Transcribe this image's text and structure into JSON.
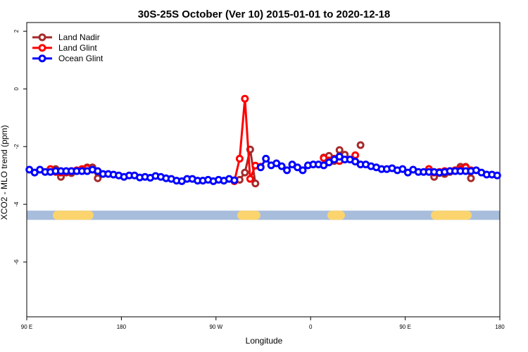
{
  "chart_data": {
    "type": "line",
    "title": "30S-25S October (Ver 10)   2015-01-01 to 2020-12-18",
    "x_label": "Longitude",
    "y_label": "XCO2 - MLO trend (ppm)",
    "xlim": [
      90,
      540
    ],
    "ylim": [
      -7.9,
      2.3
    ],
    "xticks": [
      {
        "value": 90,
        "label": "90 E"
      },
      180,
      {
        "value": 270,
        "label": "90 W"
      },
      {
        "value": 360,
        "label": "0"
      },
      {
        "value": 450,
        "label": "90 E"
      },
      {
        "value": 540,
        "label": "180"
      }
    ],
    "yticks": [
      -6,
      -4,
      -2,
      0,
      2
    ],
    "legend": "topleft",
    "surface_band": {
      "ylim": [
        -4.54,
        -4.22
      ],
      "ocean_color": "#a7bddb",
      "land_color": "#fbd46e",
      "land": [
        [
          114.8,
          153.6
        ],
        [
          290.2,
          312.3
        ],
        [
          375.9,
          392.7
        ],
        [
          474.4,
          513.2
        ]
      ]
    },
    "series": [
      {
        "name": "Land Nadir",
        "color": "#a52a2a",
        "x": [
          117.5,
          122.5,
          127.5,
          132.5,
          137.5,
          142.5,
          147.5,
          152.5,
          157.5,
          null,
          292.5,
          297.5,
          302.5,
          307.5,
          null,
          372.5,
          377.5,
          382.5,
          387.5,
          392.5,
          null,
          407.5,
          null,
          472.5,
          477.5,
          482.5,
          487.5,
          492.5,
          497.5,
          502.5,
          507.5,
          512.5
        ],
        "values": [
          -2.78,
          -3.05,
          -2.9,
          -2.92,
          -2.85,
          -2.82,
          -2.72,
          -2.72,
          -3.1,
          null,
          -3.15,
          -2.9,
          -2.1,
          -3.28,
          null,
          -2.38,
          -2.32,
          -2.5,
          -2.12,
          -2.28,
          null,
          -1.95,
          null,
          -2.78,
          -3.05,
          -2.92,
          -2.95,
          -2.88,
          -2.82,
          -2.7,
          -2.7,
          -3.1
        ]
      },
      {
        "name": "Land Glint",
        "color": "#ff0000",
        "x": [
          112.5,
          117.5,
          122.5,
          127.5,
          132.5,
          137.5,
          142.5,
          147.5,
          152.5,
          null,
          287.5,
          292.5,
          297.5,
          302.5,
          307.5,
          312.5,
          null,
          372.5,
          377.5,
          382.5,
          387.5,
          null,
          402.5,
          null,
          472.5,
          477.5,
          482.5,
          487.5,
          492.5,
          497.5,
          502.5,
          507.5,
          512.5
        ],
        "values": [
          -2.78,
          -2.88,
          -2.9,
          -2.88,
          -2.85,
          -2.82,
          -2.78,
          -2.75,
          -2.8,
          null,
          -3.2,
          -2.42,
          -0.34,
          -3.12,
          -2.66,
          -2.7,
          null,
          -2.4,
          -2.48,
          -2.42,
          -2.5,
          null,
          -2.3,
          null,
          -2.78,
          -2.9,
          -2.88,
          -2.85,
          -2.85,
          -2.82,
          -2.78,
          -2.72,
          -2.82
        ]
      },
      {
        "name": "Ocean Glint",
        "color": "#0000ff",
        "x": [
          92.5,
          97.5,
          102.5,
          107.5,
          112.5,
          117.5,
          122.5,
          127.5,
          132.5,
          137.5,
          142.5,
          147.5,
          152.5,
          157.5,
          162.5,
          167.5,
          172.5,
          177.5,
          182.5,
          187.5,
          192.5,
          197.5,
          202.5,
          207.5,
          212.5,
          217.5,
          222.5,
          227.5,
          232.5,
          237.5,
          242.5,
          247.5,
          252.5,
          257.5,
          262.5,
          267.5,
          272.5,
          277.5,
          282.5,
          287.5,
          292.5,
          297.5,
          302.5,
          307.5,
          312.5,
          317.5,
          322.5,
          327.5,
          332.5,
          337.5,
          342.5,
          347.5,
          352.5,
          357.5,
          362.5,
          367.5,
          372.5,
          377.5,
          382.5,
          387.5,
          392.5,
          397.5,
          402.5,
          407.5,
          412.5,
          417.5,
          422.5,
          427.5,
          432.5,
          437.5,
          442.5,
          447.5,
          452.5,
          457.5,
          462.5,
          467.5,
          472.5,
          477.5,
          482.5,
          487.5,
          492.5,
          497.5,
          502.5,
          507.5,
          512.5,
          517.5,
          522.5,
          527.5,
          532.5,
          537.5
        ],
        "values": [
          -2.8,
          -2.9,
          -2.8,
          -2.88,
          -2.88,
          -2.85,
          -2.85,
          -2.85,
          -2.85,
          -2.85,
          -2.85,
          -2.85,
          -2.8,
          -2.85,
          -2.95,
          -2.95,
          -2.97,
          -3.0,
          -3.05,
          -3.0,
          -3.0,
          -3.07,
          -3.05,
          -3.08,
          -3.02,
          -3.05,
          -3.1,
          -3.12,
          -3.18,
          -3.2,
          -3.12,
          -3.12,
          -3.18,
          -3.18,
          -3.15,
          -3.2,
          -3.15,
          -3.18,
          -3.12,
          -3.17,
          null,
          null,
          null,
          null,
          -2.72,
          -2.42,
          -2.65,
          -2.58,
          -2.68,
          -2.82,
          -2.62,
          -2.72,
          -2.82,
          -2.65,
          -2.62,
          -2.62,
          -2.65,
          -2.55,
          -2.45,
          -2.35,
          -2.45,
          -2.45,
          -2.52,
          -2.62,
          -2.62,
          -2.68,
          -2.72,
          -2.78,
          -2.78,
          -2.75,
          -2.82,
          -2.78,
          -2.9,
          -2.8,
          -2.88,
          -2.88,
          -2.88,
          -2.88,
          -2.9,
          -2.88,
          -2.85,
          -2.85,
          -2.85,
          -2.85,
          -2.85,
          -2.82,
          -2.9,
          -2.97,
          -2.97,
          -3.0
        ]
      }
    ]
  }
}
